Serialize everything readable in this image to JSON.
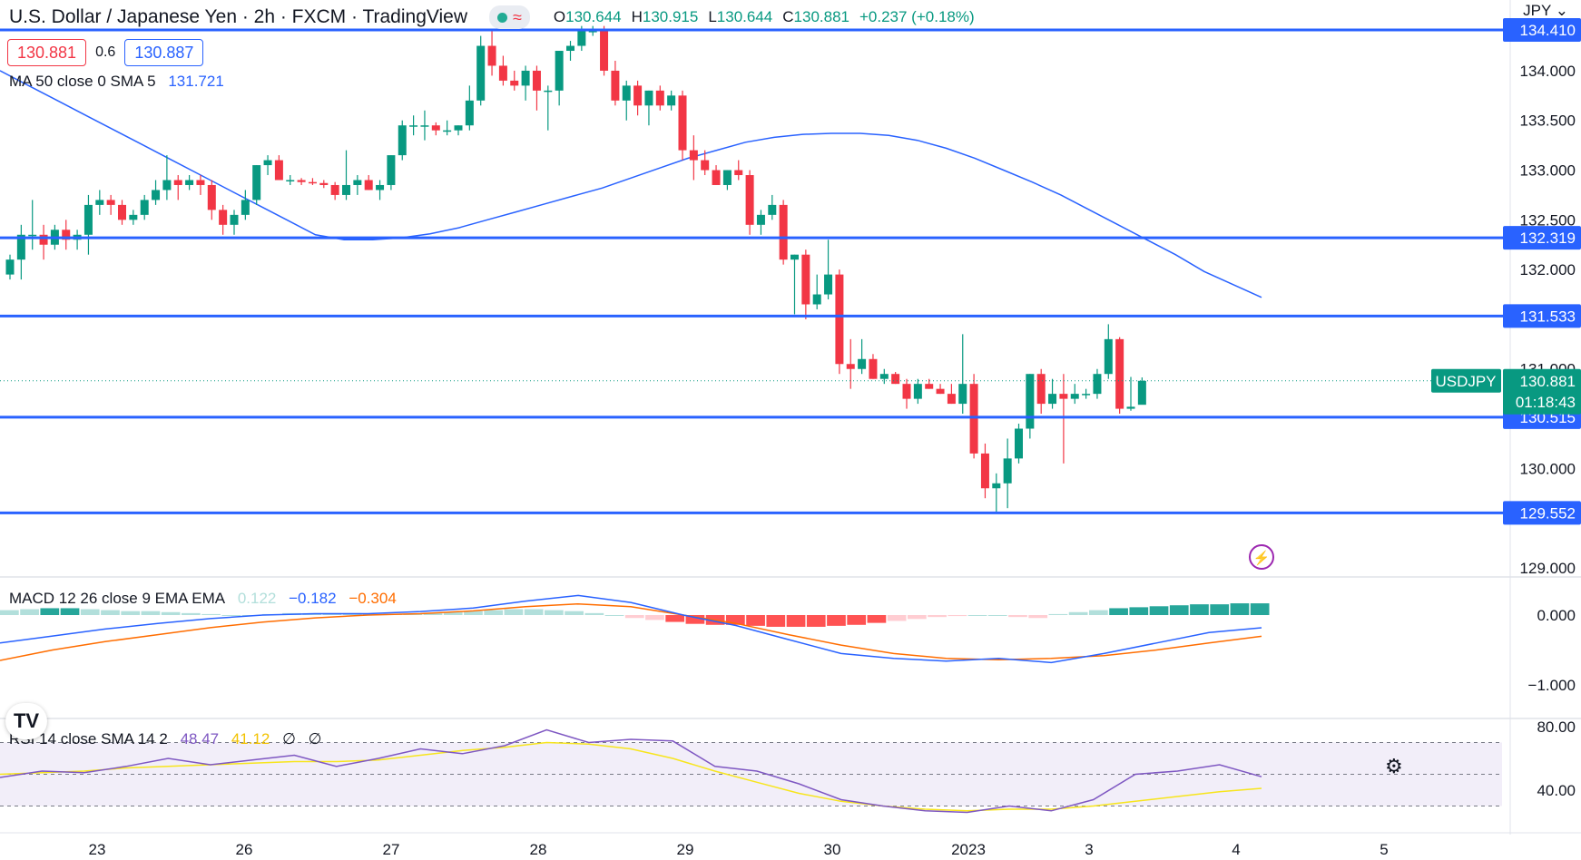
{
  "header": {
    "title": "U.S. Dollar / Japanese Yen · 2h · FXCM · TradingView",
    "ohlc": [
      {
        "k": "O",
        "v": "130.644"
      },
      {
        "k": "H",
        "v": "130.915"
      },
      {
        "k": "L",
        "v": "130.644"
      },
      {
        "k": "C",
        "v": "130.881"
      },
      {
        "k": "",
        "v": "+0.237 (+0.18%)"
      }
    ]
  },
  "trade": {
    "sell": "130.881",
    "spread": "0.6",
    "buy": "130.887"
  },
  "ma": {
    "label": "MA 50 close 0 SMA 5",
    "value": "131.721",
    "color": "#2962ff"
  },
  "macd": {
    "label": "MACD 12 26 close 9 EMA EMA",
    "hist": "0.122",
    "macd": "−0.182",
    "signal": "−0.304"
  },
  "rsi": {
    "label": "RSI 14 close SMA 14 2",
    "rsi": "48.47",
    "sma": "41.12",
    "e1": "∅",
    "e2": "∅"
  },
  "currency": "JPY",
  "symbol": "USDJPY",
  "countdown": "01:18:43",
  "colors": {
    "up": "#089981",
    "down": "#f23645",
    "level": "#2962ff",
    "macd": "#2962ff",
    "signal": "#ff6d00",
    "rsi": "#7e57c2",
    "rsi_sma": "#f7e51d"
  },
  "chart_data": {
    "type": "candlestick",
    "symbol": "USDJPY",
    "x_labels": [
      "23",
      "26",
      "27",
      "28",
      "29",
      "30",
      "2023",
      "3",
      "4",
      "5"
    ],
    "y_ticks": [
      "134.000",
      "133.500",
      "133.000",
      "132.500",
      "132.000",
      "131.000",
      "130.000",
      "129.000"
    ],
    "levels": [
      "134.410",
      "132.319",
      "131.533",
      "130.515",
      "129.552"
    ],
    "last_price": "130.881",
    "candles": [
      [
        131.95,
        132.15,
        131.9,
        132.1
      ],
      [
        132.1,
        132.45,
        131.9,
        132.35
      ],
      [
        132.35,
        132.7,
        132.2,
        132.35
      ],
      [
        132.35,
        132.45,
        132.1,
        132.25
      ],
      [
        132.25,
        132.45,
        132.2,
        132.4
      ],
      [
        132.4,
        132.5,
        132.2,
        132.3
      ],
      [
        132.3,
        132.4,
        132.2,
        132.35
      ],
      [
        132.35,
        132.75,
        132.15,
        132.65
      ],
      [
        132.65,
        132.8,
        132.55,
        132.7
      ],
      [
        132.7,
        132.75,
        132.55,
        132.65
      ],
      [
        132.65,
        132.7,
        132.45,
        132.5
      ],
      [
        132.5,
        132.6,
        132.45,
        132.55
      ],
      [
        132.55,
        132.75,
        132.5,
        132.7
      ],
      [
        132.7,
        132.9,
        132.65,
        132.8
      ],
      [
        132.8,
        133.15,
        132.7,
        132.9
      ],
      [
        132.9,
        132.95,
        132.7,
        132.85
      ],
      [
        132.85,
        132.95,
        132.8,
        132.9
      ],
      [
        132.9,
        132.95,
        132.75,
        132.85
      ],
      [
        132.85,
        132.9,
        132.5,
        132.6
      ],
      [
        132.6,
        132.65,
        132.35,
        132.45
      ],
      [
        132.45,
        132.6,
        132.35,
        132.55
      ],
      [
        132.55,
        132.8,
        132.5,
        132.7
      ],
      [
        132.7,
        133.05,
        132.65,
        133.05
      ],
      [
        133.05,
        133.15,
        132.95,
        133.1
      ],
      [
        133.1,
        133.15,
        132.9,
        132.9
      ],
      [
        132.9,
        132.95,
        132.85,
        132.9
      ],
      [
        132.9,
        132.92,
        132.85,
        132.88
      ],
      [
        132.88,
        132.92,
        132.85,
        132.87
      ],
      [
        132.87,
        132.9,
        132.82,
        132.85
      ],
      [
        132.85,
        132.88,
        132.7,
        132.75
      ],
      [
        132.75,
        133.2,
        132.7,
        132.85
      ],
      [
        132.85,
        132.95,
        132.75,
        132.9
      ],
      [
        132.9,
        132.95,
        132.8,
        132.8
      ],
      [
        132.8,
        132.9,
        132.7,
        132.85
      ],
      [
        132.85,
        133.15,
        132.8,
        133.15
      ],
      [
        133.15,
        133.5,
        133.1,
        133.45
      ],
      [
        133.45,
        133.55,
        133.35,
        133.45
      ],
      [
        133.45,
        133.6,
        133.3,
        133.45
      ],
      [
        133.45,
        133.48,
        133.35,
        133.4
      ],
      [
        133.4,
        133.5,
        133.35,
        133.4
      ],
      [
        133.4,
        133.45,
        133.35,
        133.45
      ],
      [
        133.45,
        133.85,
        133.4,
        133.7
      ],
      [
        133.7,
        134.35,
        133.65,
        134.25
      ],
      [
        134.25,
        134.4,
        133.95,
        134.05
      ],
      [
        134.05,
        134.15,
        133.85,
        133.9
      ],
      [
        133.9,
        134.0,
        133.8,
        133.85
      ],
      [
        133.85,
        134.05,
        133.7,
        134.0
      ],
      [
        134.0,
        134.05,
        133.6,
        133.8
      ],
      [
        133.8,
        133.85,
        133.4,
        133.8
      ],
      [
        133.8,
        134.2,
        133.65,
        134.2
      ],
      [
        134.2,
        134.3,
        134.1,
        134.25
      ],
      [
        134.25,
        134.45,
        134.2,
        134.4
      ],
      [
        134.4,
        134.45,
        134.35,
        134.4
      ],
      [
        134.4,
        134.45,
        133.95,
        134.0
      ],
      [
        134.0,
        134.1,
        133.65,
        133.7
      ],
      [
        133.7,
        133.9,
        133.5,
        133.85
      ],
      [
        133.85,
        133.9,
        133.55,
        133.65
      ],
      [
        133.65,
        133.8,
        133.45,
        133.8
      ],
      [
        133.8,
        133.85,
        133.6,
        133.65
      ],
      [
        133.65,
        133.8,
        133.6,
        133.75
      ],
      [
        133.75,
        133.8,
        133.1,
        133.2
      ],
      [
        133.2,
        133.35,
        132.9,
        133.1
      ],
      [
        133.1,
        133.2,
        132.95,
        133.0
      ],
      [
        133.0,
        133.05,
        132.85,
        132.85
      ],
      [
        132.85,
        133.0,
        132.8,
        133.0
      ],
      [
        133.0,
        133.1,
        132.9,
        132.95
      ],
      [
        132.95,
        133.0,
        132.35,
        132.45
      ],
      [
        132.45,
        132.6,
        132.35,
        132.55
      ],
      [
        132.55,
        132.75,
        132.5,
        132.65
      ],
      [
        132.65,
        132.7,
        132.05,
        132.1
      ],
      [
        132.1,
        132.15,
        131.55,
        132.15
      ],
      [
        132.15,
        132.2,
        131.5,
        131.65
      ],
      [
        131.65,
        131.95,
        131.6,
        131.75
      ],
      [
        131.75,
        132.3,
        131.7,
        131.95
      ],
      [
        131.95,
        132.0,
        130.95,
        131.05
      ],
      [
        131.05,
        131.3,
        130.8,
        131.0
      ],
      [
        131.0,
        131.3,
        130.95,
        131.1
      ],
      [
        131.1,
        131.15,
        130.9,
        130.9
      ],
      [
        130.9,
        131.0,
        130.85,
        130.95
      ],
      [
        130.95,
        130.97,
        130.85,
        130.85
      ],
      [
        130.85,
        130.9,
        130.6,
        130.7
      ],
      [
        130.7,
        130.9,
        130.65,
        130.85
      ],
      [
        130.85,
        130.9,
        130.8,
        130.8
      ],
      [
        130.8,
        130.85,
        130.75,
        130.75
      ],
      [
        130.75,
        130.85,
        130.65,
        130.65
      ],
      [
        130.65,
        131.35,
        130.55,
        130.85
      ],
      [
        130.85,
        130.95,
        130.1,
        130.15
      ],
      [
        130.15,
        130.25,
        129.7,
        129.8
      ],
      [
        129.8,
        129.95,
        129.55,
        129.85
      ],
      [
        129.85,
        130.3,
        129.6,
        130.1
      ],
      [
        130.1,
        130.45,
        130.05,
        130.4
      ],
      [
        130.4,
        130.95,
        130.3,
        130.95
      ],
      [
        130.95,
        131.0,
        130.55,
        130.65
      ],
      [
        130.65,
        130.9,
        130.6,
        130.75
      ],
      [
        130.75,
        130.95,
        130.05,
        130.7
      ],
      [
        130.7,
        130.85,
        130.65,
        130.75
      ],
      [
        130.75,
        130.8,
        130.7,
        130.75
      ],
      [
        130.75,
        131.0,
        130.7,
        130.95
      ],
      [
        130.95,
        131.45,
        130.9,
        131.3
      ],
      [
        131.3,
        131.32,
        130.55,
        130.6
      ],
      [
        130.6,
        130.92,
        130.58,
        130.62
      ],
      [
        130.64,
        130.915,
        130.644,
        130.881
      ]
    ],
    "ma_series": [
      134.0,
      133.85,
      133.7,
      133.55,
      133.4,
      133.25,
      133.1,
      132.95,
      132.8,
      132.65,
      132.5,
      132.35,
      132.3,
      132.3,
      132.32,
      132.36,
      132.42,
      132.5,
      132.58,
      132.66,
      132.74,
      132.82,
      132.92,
      133.02,
      133.12,
      133.2,
      133.28,
      133.33,
      133.36,
      133.37,
      133.37,
      133.35,
      133.3,
      133.22,
      133.12,
      133.0,
      132.88,
      132.75,
      132.6,
      132.45,
      132.3,
      132.15,
      131.98,
      131.85,
      131.72
    ],
    "macd_hist": [
      0.05,
      0.06,
      0.07,
      0.07,
      0.06,
      0.05,
      0.04,
      0.04,
      0.03,
      0.02,
      0.01,
      0.0,
      0.0,
      0.01,
      0.02,
      0.02,
      0.02,
      0.02,
      0.01,
      0.01,
      0.01,
      0.02,
      0.03,
      0.04,
      0.05,
      0.06,
      0.06,
      0.05,
      0.04,
      0.02,
      0.0,
      -0.03,
      -0.05,
      -0.07,
      -0.09,
      -0.1,
      -0.1,
      -0.11,
      -0.12,
      -0.12,
      -0.12,
      -0.11,
      -0.1,
      -0.08,
      -0.06,
      -0.04,
      -0.02,
      -0.01,
      0.0,
      0.0,
      -0.02,
      -0.03,
      0.01,
      0.03,
      0.05,
      0.07,
      0.08,
      0.09,
      0.1,
      0.11,
      0.11,
      0.12,
      0.12
    ],
    "macd_line": [
      -0.4,
      -0.3,
      -0.2,
      -0.12,
      -0.05,
      0.0,
      0.02,
      0.02,
      0.05,
      0.1,
      0.2,
      0.28,
      0.18,
      0.0,
      -0.15,
      -0.35,
      -0.55,
      -0.62,
      -0.66,
      -0.62,
      -0.68,
      -0.55,
      -0.4,
      -0.25,
      -0.182
    ],
    "signal_line": [
      -0.65,
      -0.5,
      -0.38,
      -0.28,
      -0.18,
      -0.1,
      -0.04,
      0.0,
      0.02,
      0.06,
      0.12,
      0.16,
      0.12,
      0.0,
      -0.12,
      -0.28,
      -0.43,
      -0.55,
      -0.62,
      -0.64,
      -0.62,
      -0.58,
      -0.5,
      -0.4,
      -0.304
    ],
    "rsi_line": [
      48,
      52,
      51,
      55,
      60,
      56,
      59,
      62,
      55,
      60,
      66,
      63,
      68,
      78,
      70,
      72,
      71,
      55,
      52,
      44,
      34,
      30,
      27,
      26,
      30,
      27,
      34,
      50,
      52,
      56,
      48.47
    ],
    "rsi_sma_line": [
      50,
      51,
      52,
      54,
      55,
      56,
      57,
      58,
      58,
      59,
      62,
      65,
      67,
      70,
      69,
      66,
      60,
      52,
      45,
      38,
      33,
      30,
      28,
      27,
      28,
      28,
      30,
      33,
      36,
      39,
      41.12
    ]
  }
}
